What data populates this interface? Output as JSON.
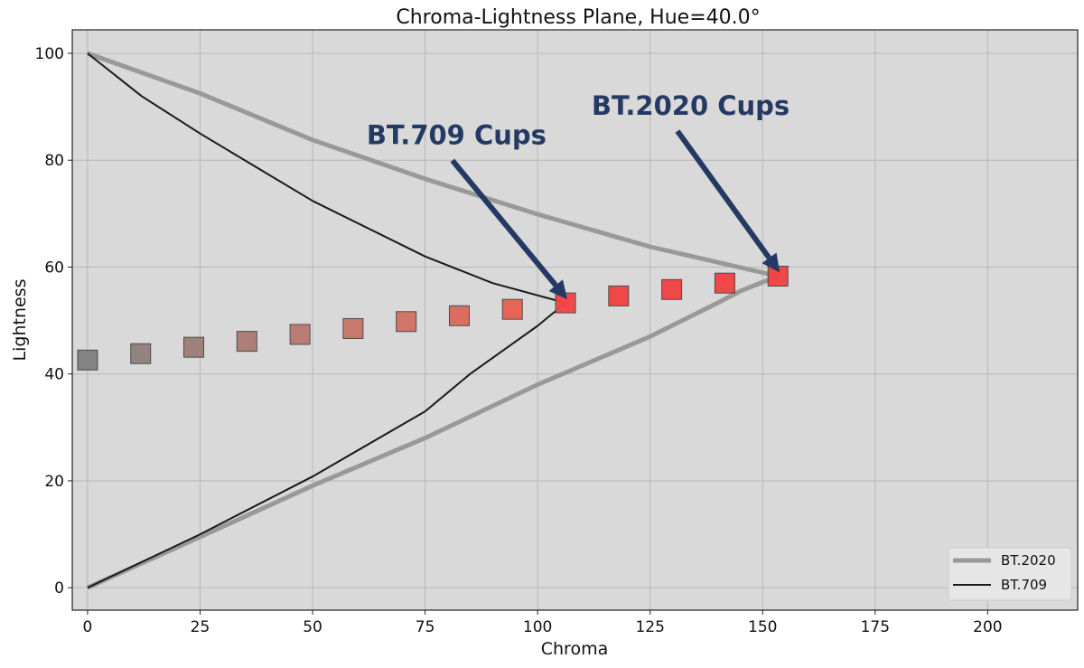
{
  "chart_data": {
    "type": "line",
    "title": "Chroma-Lightness Plane, Hue=40.0°",
    "xlabel": "Chroma",
    "ylabel": "Lightness",
    "xlim": [
      -3.4,
      220
    ],
    "ylim": [
      -4.2,
      104.4
    ],
    "xticks": [
      0,
      25,
      50,
      75,
      100,
      125,
      150,
      175,
      200
    ],
    "yticks": [
      0,
      20,
      40,
      60,
      80,
      100
    ],
    "grid": true,
    "background": "#d9d9d9",
    "legend_position": "bottom-right",
    "series": [
      {
        "name": "BT.2020",
        "color": "#999999",
        "style": "thick",
        "points": [
          [
            0,
            100
          ],
          [
            25,
            92.5
          ],
          [
            50,
            83.8
          ],
          [
            75,
            76.5
          ],
          [
            100,
            69.9
          ],
          [
            125,
            63.8
          ],
          [
            153.4,
            58.3
          ],
          [
            145,
            55.5
          ],
          [
            140,
            53.3
          ],
          [
            125,
            47
          ],
          [
            100,
            38
          ],
          [
            75,
            28
          ],
          [
            50,
            19.1
          ],
          [
            25,
            9.5
          ],
          [
            0,
            0
          ]
        ]
      },
      {
        "name": "BT.709",
        "color": "#1a1a1a",
        "style": "thin",
        "points": [
          [
            0,
            100
          ],
          [
            12,
            92
          ],
          [
            25,
            85
          ],
          [
            50,
            72.4
          ],
          [
            75,
            62
          ],
          [
            90,
            57
          ],
          [
            106.2,
            53.3
          ],
          [
            100,
            49
          ],
          [
            85,
            40
          ],
          [
            75,
            33
          ],
          [
            50,
            20.8
          ],
          [
            25,
            10
          ],
          [
            0,
            0
          ]
        ]
      }
    ],
    "markers": {
      "shape": "square",
      "points": [
        {
          "x": 0,
          "y": 42.6,
          "color": "#7f7f7f"
        },
        {
          "x": 11.8,
          "y": 43.8,
          "color": "#8f7f7d"
        },
        {
          "x": 23.6,
          "y": 45.0,
          "color": "#9e7c77"
        },
        {
          "x": 35.4,
          "y": 46.1,
          "color": "#ab7b73"
        },
        {
          "x": 47.2,
          "y": 47.4,
          "color": "#ba786e"
        },
        {
          "x": 59.0,
          "y": 48.5,
          "color": "#c77468"
        },
        {
          "x": 70.8,
          "y": 49.8,
          "color": "#d26f62"
        },
        {
          "x": 82.6,
          "y": 50.9,
          "color": "#db6a5b"
        },
        {
          "x": 94.4,
          "y": 52.1,
          "color": "#e65f50"
        },
        {
          "x": 106.2,
          "y": 53.3,
          "color": "#f24443"
        },
        {
          "x": 118.0,
          "y": 54.6,
          "color": "#f24040"
        },
        {
          "x": 129.8,
          "y": 55.8,
          "color": "#f24040"
        },
        {
          "x": 141.6,
          "y": 57.0,
          "color": "#f24040"
        },
        {
          "x": 153.4,
          "y": 58.3,
          "color": "#f24040"
        }
      ]
    },
    "annotations": [
      {
        "text": "BT.709 Cups",
        "target": [
          106.2,
          53.3
        ],
        "text_at": [
          62,
          83
        ]
      },
      {
        "text": "BT.2020 Cups",
        "target": [
          153.4,
          58.3
        ],
        "text_at": [
          112,
          88.5
        ]
      }
    ],
    "annotation_color": "#253a63"
  }
}
